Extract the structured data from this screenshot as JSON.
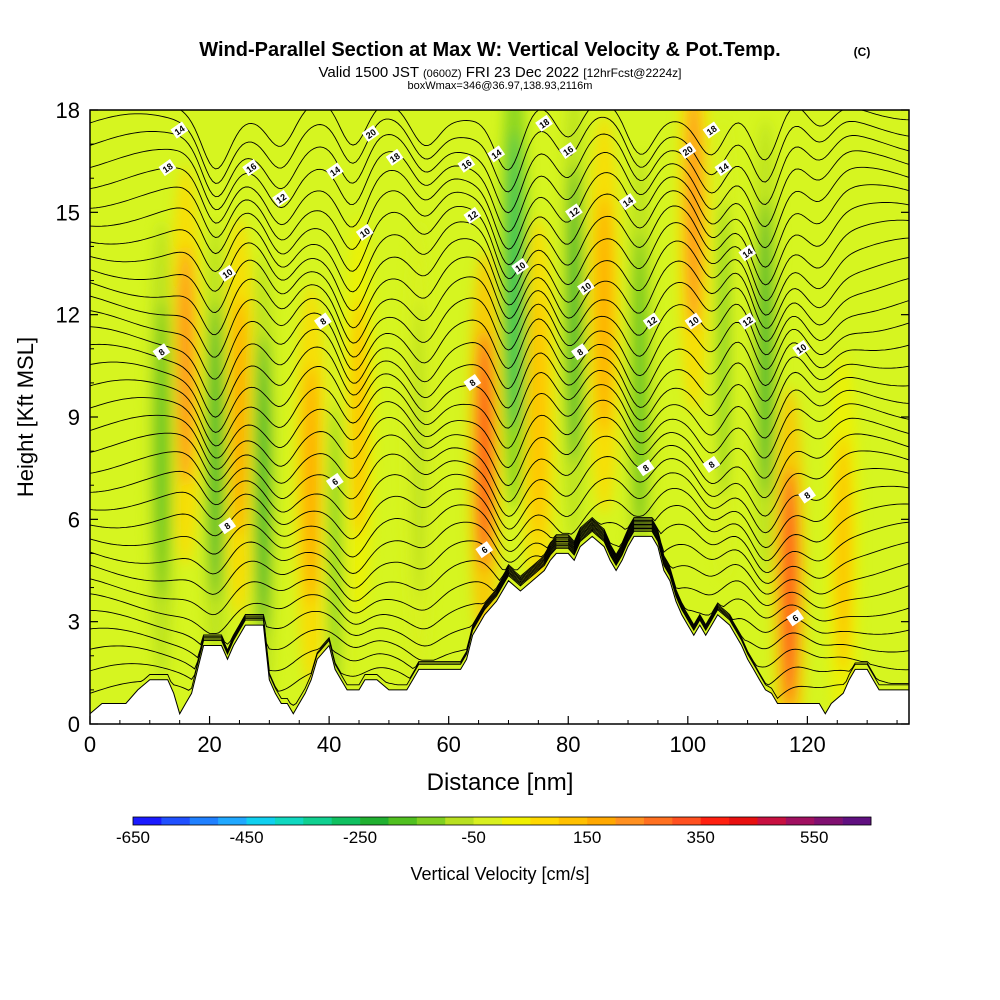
{
  "header": {
    "title": "Wind-Parallel Section at Max W: Vertical Velocity & Pot.Temp.",
    "copyright": "(C)",
    "valid_prefix": "Valid 1500 JST",
    "valid_utc": "(0600Z)",
    "valid_date": "FRI 23 Dec 2022",
    "forecast": "[12hrFcst@2224z]",
    "box_info": "boxWmax=346@36.97,138.93,2116m"
  },
  "chart_data": {
    "type": "heatmap",
    "title": "Wind-Parallel Section at Max W: Vertical Velocity & Pot.Temp.",
    "xlabel": "Distance [nm]",
    "ylabel": "Height [Kft MSL]",
    "xlim": [
      0,
      137
    ],
    "ylim": [
      0,
      18
    ],
    "x_ticks": [
      0,
      20,
      40,
      60,
      80,
      100,
      120
    ],
    "y_ticks": [
      0,
      3,
      6,
      9,
      12,
      15,
      18
    ],
    "grid": false,
    "colorbar": {
      "label": "Vertical Velocity [cm/s]",
      "placement": "bottom",
      "tick_labels": [
        "-650",
        "-450",
        "-250",
        "-50",
        "150",
        "350",
        "550"
      ],
      "tick_values": [
        -650,
        -450,
        -250,
        -50,
        150,
        350,
        550
      ],
      "range": [
        -650,
        650
      ],
      "colors": [
        "#1a1aff",
        "#2050ff",
        "#2080ff",
        "#20a8ff",
        "#10d0f0",
        "#10d8c0",
        "#10d090",
        "#10c060",
        "#20b030",
        "#50c020",
        "#80d020",
        "#b8e020",
        "#d8f020",
        "#f0f000",
        "#ffd800",
        "#ffc000",
        "#ffa800",
        "#ff9020",
        "#ff7020",
        "#ff5020",
        "#ff2010",
        "#e81010",
        "#c81040",
        "#a01060",
        "#801070",
        "#601080"
      ]
    },
    "terrain": [
      [
        0,
        0.3
      ],
      [
        2,
        0.6
      ],
      [
        6,
        0.6
      ],
      [
        8,
        1.0
      ],
      [
        10,
        1.3
      ],
      [
        13,
        1.3
      ],
      [
        14,
        0.9
      ],
      [
        15,
        0.3
      ],
      [
        16,
        0.6
      ],
      [
        17,
        0.9
      ],
      [
        18,
        1.6
      ],
      [
        19,
        2.3
      ],
      [
        22,
        2.3
      ],
      [
        23,
        1.9
      ],
      [
        24,
        2.3
      ],
      [
        25,
        2.6
      ],
      [
        26,
        2.9
      ],
      [
        29,
        2.9
      ],
      [
        30,
        1.3
      ],
      [
        31,
        0.9
      ],
      [
        32,
        0.6
      ],
      [
        33,
        0.6
      ],
      [
        34,
        0.3
      ],
      [
        35,
        0.6
      ],
      [
        36,
        0.9
      ],
      [
        37,
        1.3
      ],
      [
        38,
        1.9
      ],
      [
        40,
        2.3
      ],
      [
        41,
        1.6
      ],
      [
        42,
        1.3
      ],
      [
        43,
        1.0
      ],
      [
        45,
        1.0
      ],
      [
        46,
        1.3
      ],
      [
        48,
        1.3
      ],
      [
        50,
        1.0
      ],
      [
        53,
        1.0
      ],
      [
        54,
        1.3
      ],
      [
        55,
        1.6
      ],
      [
        62,
        1.6
      ],
      [
        63,
        1.9
      ],
      [
        64,
        2.6
      ],
      [
        65,
        2.9
      ],
      [
        66,
        3.2
      ],
      [
        68,
        3.6
      ],
      [
        70,
        4.2
      ],
      [
        72,
        3.9
      ],
      [
        74,
        4.2
      ],
      [
        76,
        4.5
      ],
      [
        77,
        4.8
      ],
      [
        78,
        5.0
      ],
      [
        80,
        5.0
      ],
      [
        81,
        4.8
      ],
      [
        82,
        5.2
      ],
      [
        84,
        5.5
      ],
      [
        86,
        5.2
      ],
      [
        87,
        4.8
      ],
      [
        88,
        4.5
      ],
      [
        89,
        4.8
      ],
      [
        90,
        5.2
      ],
      [
        91,
        5.5
      ],
      [
        94,
        5.5
      ],
      [
        95,
        5.2
      ],
      [
        96,
        4.5
      ],
      [
        97,
        4.2
      ],
      [
        98,
        3.6
      ],
      [
        99,
        3.2
      ],
      [
        100,
        2.9
      ],
      [
        101,
        2.6
      ],
      [
        102,
        2.9
      ],
      [
        103,
        2.6
      ],
      [
        104,
        2.9
      ],
      [
        105,
        3.2
      ],
      [
        107,
        2.9
      ],
      [
        108,
        2.6
      ],
      [
        109,
        2.3
      ],
      [
        110,
        1.9
      ],
      [
        111,
        1.6
      ],
      [
        112,
        1.3
      ],
      [
        113,
        1.0
      ],
      [
        114,
        0.9
      ],
      [
        115,
        0.6
      ],
      [
        122,
        0.6
      ],
      [
        123,
        0.3
      ],
      [
        124,
        0.6
      ],
      [
        126,
        0.9
      ],
      [
        127,
        1.3
      ],
      [
        128,
        1.6
      ],
      [
        130,
        1.6
      ],
      [
        131,
        1.3
      ],
      [
        132,
        1.0
      ],
      [
        137,
        1.0
      ]
    ],
    "updraft_cores": [
      {
        "x": 16,
        "y": 10.5,
        "w": 240
      },
      {
        "x": 25,
        "y": 9,
        "w": 150
      },
      {
        "x": 37,
        "y": 7,
        "w": 180
      },
      {
        "x": 45,
        "y": 9,
        "w": 120
      },
      {
        "x": 66,
        "y": 8,
        "w": 346
      },
      {
        "x": 75,
        "y": 9,
        "w": 130
      },
      {
        "x": 86,
        "y": 12,
        "w": 150
      },
      {
        "x": 101,
        "y": 15,
        "w": 200
      },
      {
        "x": 117,
        "y": 4,
        "w": 300
      },
      {
        "x": 126,
        "y": 5,
        "w": 120
      }
    ],
    "downdraft_cores": [
      {
        "x": 12,
        "y": 8,
        "w": -200
      },
      {
        "x": 21,
        "y": 8,
        "w": -250
      },
      {
        "x": 29,
        "y": 7,
        "w": -230
      },
      {
        "x": 41,
        "y": 5,
        "w": -120
      },
      {
        "x": 55,
        "y": 8,
        "w": -90
      },
      {
        "x": 71,
        "y": 13,
        "w": -260
      },
      {
        "x": 81,
        "y": 12,
        "w": -220
      },
      {
        "x": 92,
        "y": 10,
        "w": -160
      },
      {
        "x": 106,
        "y": 11,
        "w": -120
      },
      {
        "x": 113,
        "y": 11,
        "w": -230
      }
    ],
    "contour_labels": [
      {
        "x": 15,
        "y": 17.4,
        "text": "14"
      },
      {
        "x": 13,
        "y": 16.3,
        "text": "18"
      },
      {
        "x": 27,
        "y": 16.3,
        "text": "16"
      },
      {
        "x": 32,
        "y": 15.4,
        "text": "12"
      },
      {
        "x": 41,
        "y": 16.2,
        "text": "14"
      },
      {
        "x": 47,
        "y": 17.3,
        "text": "20"
      },
      {
        "x": 51,
        "y": 16.6,
        "text": "18"
      },
      {
        "x": 63,
        "y": 16.4,
        "text": "16"
      },
      {
        "x": 68,
        "y": 16.7,
        "text": "14"
      },
      {
        "x": 64,
        "y": 14.9,
        "text": "12"
      },
      {
        "x": 76,
        "y": 17.6,
        "text": "18"
      },
      {
        "x": 80,
        "y": 16.8,
        "text": "16"
      },
      {
        "x": 81,
        "y": 15.0,
        "text": "12"
      },
      {
        "x": 90,
        "y": 15.3,
        "text": "14"
      },
      {
        "x": 100,
        "y": 16.8,
        "text": "20"
      },
      {
        "x": 104,
        "y": 17.4,
        "text": "18"
      },
      {
        "x": 106,
        "y": 16.3,
        "text": "14"
      },
      {
        "x": 110,
        "y": 13.8,
        "text": "14"
      },
      {
        "x": 46,
        "y": 14.4,
        "text": "10"
      },
      {
        "x": 23,
        "y": 13.2,
        "text": "10"
      },
      {
        "x": 72,
        "y": 13.4,
        "text": "10"
      },
      {
        "x": 83,
        "y": 12.8,
        "text": "10"
      },
      {
        "x": 94,
        "y": 11.8,
        "text": "12"
      },
      {
        "x": 101,
        "y": 11.8,
        "text": "10"
      },
      {
        "x": 110,
        "y": 11.8,
        "text": "12"
      },
      {
        "x": 119,
        "y": 11.0,
        "text": "10"
      },
      {
        "x": 12,
        "y": 10.9,
        "text": "8"
      },
      {
        "x": 39,
        "y": 11.8,
        "text": "8"
      },
      {
        "x": 64,
        "y": 10.0,
        "text": "8"
      },
      {
        "x": 82,
        "y": 10.9,
        "text": "8"
      },
      {
        "x": 93,
        "y": 7.5,
        "text": "8"
      },
      {
        "x": 104,
        "y": 7.6,
        "text": "8"
      },
      {
        "x": 120,
        "y": 6.7,
        "text": "8"
      },
      {
        "x": 23,
        "y": 5.8,
        "text": "8"
      },
      {
        "x": 41,
        "y": 7.1,
        "text": "6"
      },
      {
        "x": 66,
        "y": 5.1,
        "text": "6"
      },
      {
        "x": 118,
        "y": 3.1,
        "text": "6"
      }
    ]
  }
}
